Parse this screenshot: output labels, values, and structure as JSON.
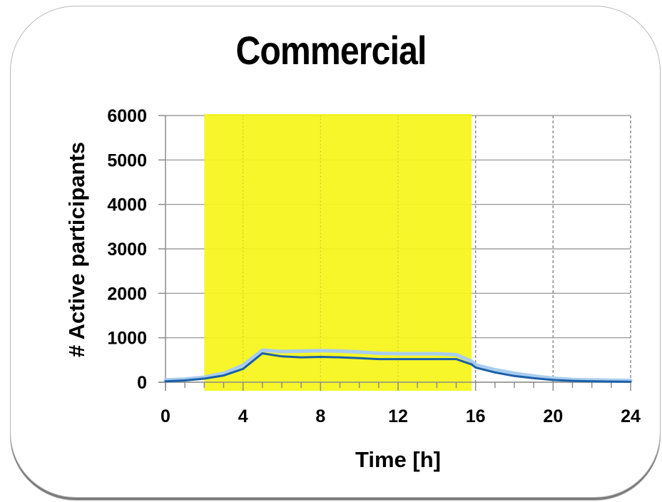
{
  "chart_data": {
    "type": "line",
    "title": "Commercial",
    "xlabel": "Time [h]",
    "ylabel": "# Active participants",
    "xlim": [
      0,
      24
    ],
    "ylim": [
      0,
      6000
    ],
    "x_ticks": [
      "0",
      "4",
      "8",
      "12",
      "16",
      "20",
      "24"
    ],
    "y_ticks": [
      "0",
      "1000",
      "2000",
      "3000",
      "4000",
      "5000",
      "6000"
    ],
    "grid": true,
    "highlight_band": {
      "x_start": 2,
      "x_end": 15.8,
      "color": "#f5f51a"
    },
    "series": [
      {
        "color": "#1a5fa8",
        "x": [
          0,
          1,
          2,
          3,
          4,
          5,
          6,
          7,
          8,
          9,
          10,
          11,
          12,
          13,
          14,
          15,
          15.8,
          16,
          17,
          18,
          19,
          20,
          21,
          22,
          23,
          24
        ],
        "y": [
          20,
          40,
          80,
          150,
          300,
          650,
          580,
          560,
          570,
          560,
          540,
          520,
          520,
          520,
          520,
          520,
          400,
          330,
          220,
          140,
          90,
          50,
          30,
          20,
          15,
          10
        ]
      },
      {
        "color": "#a9cdee",
        "x": [
          0,
          1,
          2,
          3,
          4,
          5,
          6,
          7,
          8,
          9,
          10,
          11,
          12,
          13,
          14,
          15,
          15.8,
          16,
          17,
          18,
          19,
          20,
          21,
          22,
          23,
          24
        ],
        "y": [
          50,
          70,
          110,
          200,
          380,
          720,
          690,
          700,
          710,
          700,
          680,
          650,
          640,
          640,
          640,
          620,
          470,
          390,
          280,
          200,
          140,
          90,
          60,
          50,
          45,
          40
        ]
      }
    ]
  }
}
